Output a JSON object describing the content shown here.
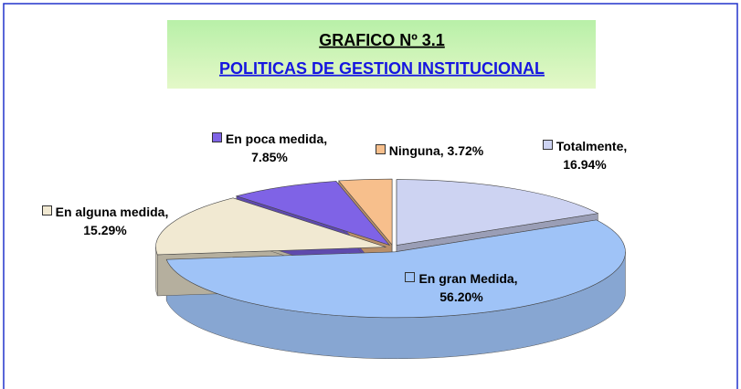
{
  "chart_data": {
    "type": "pie",
    "title": "GRAFICO Nº 3.1",
    "subtitle": "POLITICAS DE GESTION INSTITUCIONAL",
    "values": [
      16.94,
      56.2,
      15.29,
      7.85,
      3.72
    ],
    "value_labels": [
      "Totalmente, 16.94%",
      "En gran Medida, 56.20%",
      "En alguna medida, 15.29%",
      "En poca medida, 7.85%",
      "Ninguna, 3.72%"
    ],
    "colors": [
      "#cdd3f2",
      "#9fc3f7",
      "#f1e9d2",
      "#7f63e6",
      "#f7bf8c"
    ]
  }
}
